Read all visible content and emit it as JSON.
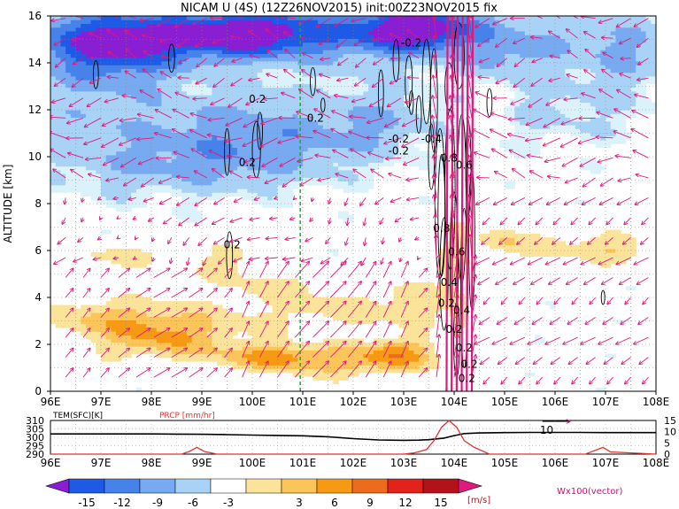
{
  "title": "NICAM U (4S) (12Z26NOV2015) init:00Z23NOV2015 fix",
  "colors": {
    "shade_neg": [
      "#8a1ed2",
      "#1e5ae6",
      "#4682ea",
      "#78aaf2",
      "#a8d2f6",
      "#dcf2fb"
    ],
    "shade_pos": [
      "#ffffff",
      "#fbe39a",
      "#fbc55a",
      "#f59a12",
      "#ee6a1c",
      "#e2231c",
      "#b4121a"
    ],
    "vector": "#e0197d",
    "contour": "#000000",
    "green_line": "#22aa22",
    "temp_line": "#000000",
    "prcp_line": "#e23232"
  },
  "chart_data": [
    {
      "type": "heatmap",
      "title": "NICAM U (4S) (12Z26NOV2015) init:00Z23NOV2015 fix",
      "ylabel": "ALTITUDE [km]",
      "xlabel": "",
      "xlim": [
        96,
        108
      ],
      "ylim": [
        0,
        16
      ],
      "x_ticks": [
        "96E",
        "97E",
        "98E",
        "99E",
        "100E",
        "101E",
        "102E",
        "103E",
        "104E",
        "105E",
        "106E",
        "107E",
        "108E"
      ],
      "y_ticks": [
        "0",
        "2",
        "4",
        "6",
        "8",
        "10",
        "12",
        "14",
        "16"
      ],
      "grid": true,
      "colorbar": {
        "labels": [
          "-15",
          "-12",
          "-9",
          "-6",
          "-3",
          "3",
          "6",
          "9",
          "12",
          "15"
        ],
        "unit": "[m/s]"
      },
      "contour_labels": [
        "0.2",
        "0.2",
        "0.2",
        "0.2",
        "-0.2",
        "-0.4",
        "-0.2",
        "-0.2",
        "0.8",
        "0.6",
        "0.8",
        "0.6",
        "0.4",
        "0.2",
        "0.4",
        "0.2",
        "0.2",
        "0.2",
        "0.2"
      ],
      "vector_label": "Wx100(vector)",
      "vertical_line_lon": 100.95,
      "wind_regions": [
        {
          "lon": [
            96,
            108
          ],
          "alt": [
            12.5,
            16
          ],
          "value": -8
        },
        {
          "lon": [
            96,
            103.4
          ],
          "alt": [
            8.5,
            12.5
          ],
          "value": -5
        },
        {
          "lon": [
            96,
            103.5
          ],
          "alt": [
            0.5,
            4
          ],
          "value": 4
        },
        {
          "lon": [
            97.5,
            99.2
          ],
          "alt": [
            1.5,
            3
          ],
          "value": 7
        },
        {
          "lon": [
            100,
            103.6
          ],
          "alt": [
            0.5,
            2
          ],
          "value": 7
        },
        {
          "lon": [
            104.5,
            108
          ],
          "alt": [
            5,
            7
          ],
          "value": 4
        }
      ]
    },
    {
      "type": "line",
      "xlim": [
        96,
        108
      ],
      "left_axis": {
        "label": "TEM(SFC)[K]",
        "ticks": [
          "310",
          "305",
          "300",
          "295",
          "290"
        ],
        "ylim": [
          290,
          310
        ]
      },
      "right_axis": {
        "label": "PRCP [mm/hr]",
        "ticks": [
          "15",
          "10",
          "5",
          "0"
        ],
        "ylim": [
          0,
          15
        ]
      },
      "x_ticks": [
        "96E",
        "97E",
        "98E",
        "99E",
        "100E",
        "101E",
        "102E",
        "103E",
        "104E",
        "105E",
        "106E",
        "107E",
        "108E"
      ],
      "annotation": "10",
      "series": [
        {
          "name": "TEM(SFC)[K]",
          "x": [
            96,
            97,
            98,
            98.5,
            99,
            99.5,
            100,
            100.5,
            101,
            101.5,
            102,
            102.5,
            103,
            103.3,
            103.5,
            103.8,
            104,
            104.2,
            104.5,
            105,
            105.5,
            106,
            106.5,
            107,
            107.5,
            108
          ],
          "y": [
            302,
            302,
            302,
            301.9,
            301.8,
            301.6,
            301.3,
            301.1,
            300.9,
            300.3,
            299.2,
            298.4,
            298.2,
            298.3,
            298.6,
            299.5,
            301,
            302.2,
            302.6,
            302.8,
            302.9,
            302.9,
            302.9,
            302.8,
            302.8,
            302.8
          ]
        },
        {
          "name": "PRCP [mm/hr]",
          "x": [
            96,
            98.6,
            98.75,
            98.9,
            99.05,
            99.3,
            100,
            101,
            102,
            103,
            103.2,
            103.45,
            103.6,
            103.75,
            103.9,
            104.05,
            104.2,
            104.4,
            104.55,
            104.7,
            105,
            106.6,
            106.75,
            106.95,
            107.1,
            108
          ],
          "y": [
            0,
            0,
            1.2,
            3,
            1.2,
            0,
            0,
            0,
            0,
            0,
            0.5,
            2,
            6,
            12,
            15,
            12,
            6,
            3,
            1.5,
            0,
            0,
            0,
            1.3,
            3,
            1,
            0
          ]
        }
      ]
    }
  ]
}
